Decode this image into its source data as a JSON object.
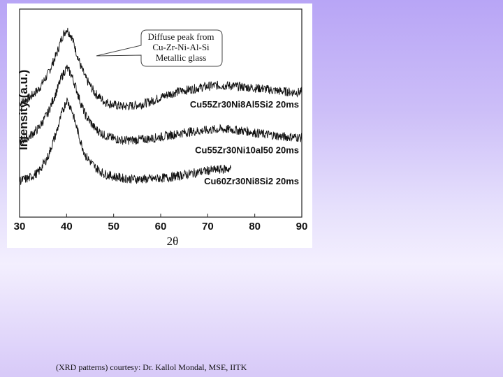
{
  "chart_data": {
    "type": "line",
    "title": "",
    "xlabel": "2θ",
    "ylabel": "Intensity (a.u.)",
    "xlim": [
      30,
      90
    ],
    "x_ticks": [
      "30",
      "40",
      "50",
      "60",
      "70",
      "80",
      "90"
    ],
    "grid": false,
    "series": [
      {
        "name": "Cu55Zr30Ni8Al5Si2 20ms",
        "x": [
          30,
          32,
          34,
          36,
          38,
          39,
          40,
          41,
          42,
          43,
          44,
          46,
          48,
          50,
          52,
          54,
          56,
          58,
          60,
          62,
          64,
          66,
          68,
          70,
          72,
          74,
          76,
          78,
          80,
          82,
          84,
          86,
          88,
          90
        ],
        "y": [
          5.6,
          5.9,
          6.4,
          7.3,
          8.6,
          9.5,
          10.0,
          9.6,
          8.7,
          7.8,
          7.1,
          6.2,
          5.7,
          5.5,
          5.4,
          5.45,
          5.55,
          5.7,
          5.95,
          6.15,
          6.3,
          6.4,
          6.5,
          6.6,
          6.65,
          6.65,
          6.6,
          6.55,
          6.5,
          6.45,
          6.35,
          6.3,
          6.25,
          6.25
        ]
      },
      {
        "name": "Cu55Zr30Ni10al50 20ms",
        "x": [
          30,
          32,
          34,
          36,
          38,
          39,
          40,
          41,
          42,
          43,
          44,
          46,
          48,
          50,
          52,
          54,
          56,
          58,
          60,
          62,
          64,
          66,
          68,
          70,
          72,
          74,
          76,
          78,
          80,
          82,
          84,
          86,
          88,
          90
        ],
        "y": [
          3.3,
          3.6,
          4.1,
          5.0,
          6.4,
          7.2,
          7.7,
          7.3,
          6.5,
          5.6,
          4.9,
          4.1,
          3.7,
          3.5,
          3.4,
          3.4,
          3.45,
          3.5,
          3.6,
          3.7,
          3.8,
          3.9,
          3.95,
          4.0,
          4.05,
          4.05,
          4.0,
          3.95,
          3.85,
          3.75,
          3.7,
          3.6,
          3.6,
          3.55
        ]
      },
      {
        "name": "Cu60Zr30Ni8Si2 20ms",
        "x": [
          30,
          32,
          34,
          36,
          38,
          39,
          40,
          41,
          42,
          43,
          44,
          46,
          48,
          50,
          52,
          54,
          56,
          58,
          60,
          62,
          64,
          66,
          68,
          70,
          72,
          74,
          75
        ],
        "y": [
          1.0,
          1.15,
          1.5,
          2.4,
          4.0,
          5.0,
          5.8,
          5.3,
          4.3,
          3.3,
          2.5,
          1.8,
          1.4,
          1.25,
          1.15,
          1.1,
          1.1,
          1.1,
          1.15,
          1.2,
          1.3,
          1.4,
          1.5,
          1.6,
          1.65,
          1.7,
          1.7
        ]
      }
    ],
    "annotation": {
      "lines": [
        "Diffuse peak from",
        "Cu-Zr-Ni-Al-Si",
        "Metallic glass"
      ]
    }
  },
  "caption": "(XRD patterns) courtesy: Dr. Kallol Mondal, MSE, IITK"
}
